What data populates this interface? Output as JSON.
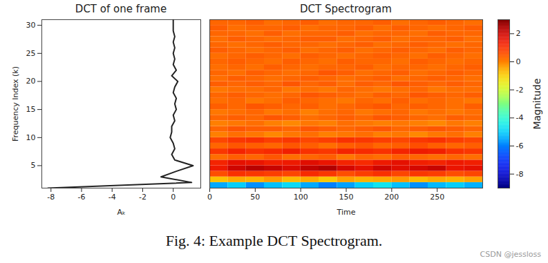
{
  "chart_data": [
    {
      "type": "line",
      "title": "DCT of one frame",
      "x_label": "Aₖ",
      "y_label": "Frequency Index (k)",
      "color": "#222222",
      "x": [
        -8.2,
        1.2,
        -0.8,
        0.2,
        1.3,
        0.1,
        -0.1,
        0.1,
        0.0,
        -0.2,
        -0.1,
        -0.1,
        0.1,
        0.0,
        0.2,
        0.1,
        0.2,
        0.0,
        0.1,
        0.3,
        -0.1,
        0.2,
        0.0,
        0.1,
        0.0,
        0.1,
        0.0,
        0.1,
        0.0,
        0.0,
        0.0
      ],
      "y": [
        1,
        2,
        3,
        4,
        5,
        6,
        7,
        8,
        9,
        10,
        11,
        12,
        13,
        14,
        15,
        16,
        17,
        18,
        19,
        20,
        21,
        22,
        23,
        24,
        25,
        26,
        27,
        28,
        29,
        30,
        31
      ],
      "xlim": [
        -8.6,
        1.8
      ],
      "ylim": [
        1,
        31
      ],
      "xticks": [
        -8,
        -6,
        -4,
        -2,
        0
      ],
      "yticks": [
        5,
        10,
        15,
        20,
        25,
        30
      ]
    },
    {
      "type": "heatmap",
      "title": "DCT Spectrogram",
      "x_label": "Time",
      "tick_labels": "x",
      "xlim": [
        0,
        300
      ],
      "ylim": [
        1,
        31
      ],
      "xticks": [
        0,
        50,
        100,
        150,
        200,
        250
      ],
      "x_edges": [
        0,
        20,
        40,
        60,
        80,
        100,
        120,
        140,
        160,
        180,
        200,
        220,
        240,
        260,
        280,
        300
      ],
      "y_edges": [
        1,
        2,
        3,
        4,
        5,
        6,
        7,
        8,
        9,
        10,
        11,
        12,
        13,
        14,
        15,
        16,
        17,
        18,
        19,
        20,
        21,
        22,
        23,
        24,
        25,
        26,
        27,
        28,
        29,
        30,
        31
      ],
      "cells": [
        [
          -5.5,
          -5.0,
          -5.8,
          -5.2,
          -4.8,
          -5.5,
          -6.0,
          -5.6,
          -5.0,
          -4.6,
          -5.2,
          -5.8,
          -5.3,
          -5.0,
          -5.4
        ],
        [
          -0.8,
          -0.5,
          -0.6,
          -0.3,
          -0.7,
          -0.5,
          -0.9,
          -0.4,
          -0.6,
          -0.5,
          -0.3,
          -0.7,
          -0.5,
          -0.6,
          -0.4
        ],
        [
          0.6,
          1.0,
          0.9,
          0.8,
          0.7,
          1.1,
          0.9,
          0.6,
          0.8,
          1.0,
          0.7,
          0.9,
          0.8,
          0.6,
          0.7
        ],
        [
          1.4,
          2.0,
          2.3,
          2.1,
          1.8,
          2.2,
          2.4,
          1.9,
          1.6,
          2.0,
          1.7,
          1.9,
          2.1,
          1.5,
          1.6
        ],
        [
          1.2,
          1.6,
          1.5,
          1.3,
          1.4,
          1.7,
          1.5,
          1.2,
          1.1,
          1.4,
          1.6,
          1.3,
          1.2,
          1.4,
          1.3
        ],
        [
          0.2,
          0.4,
          0.3,
          0.5,
          0.2,
          0.3,
          0.4,
          0.1,
          0.3,
          0.2,
          0.4,
          0.3,
          0.2,
          0.3,
          0.2
        ],
        [
          0.9,
          1.2,
          1.0,
          1.1,
          1.3,
          1.0,
          0.9,
          1.2,
          1.1,
          1.0,
          1.2,
          1.4,
          1.3,
          1.0,
          0.9
        ],
        [
          0.3,
          0.5,
          0.4,
          0.3,
          0.5,
          0.4,
          0.2,
          0.4,
          0.5,
          0.3,
          0.4,
          0.6,
          0.4,
          0.3,
          0.4
        ],
        [
          0.7,
          0.9,
          1.0,
          0.8,
          0.9,
          0.7,
          0.8,
          1.0,
          0.9,
          0.8,
          0.7,
          0.9,
          1.0,
          0.8,
          0.7
        ],
        [
          0.0,
          0.2,
          0.1,
          -0.1,
          0.1,
          0.2,
          0.0,
          0.1,
          0.2,
          0.0,
          0.1,
          -0.1,
          0.1,
          0.2,
          0.0
        ],
        [
          0.3,
          0.5,
          0.4,
          0.4,
          0.3,
          0.5,
          0.4,
          0.3,
          0.4,
          0.5,
          0.3,
          0.4,
          0.5,
          0.4,
          0.3
        ],
        [
          0.0,
          0.1,
          0.2,
          0.0,
          -0.1,
          0.1,
          0.0,
          0.2,
          0.1,
          0.0,
          0.1,
          0.0,
          -0.1,
          0.1,
          0.0
        ],
        [
          0.3,
          0.4,
          0.3,
          0.5,
          0.4,
          0.2,
          0.3,
          0.4,
          0.3,
          0.5,
          0.4,
          0.3,
          0.2,
          0.4,
          0.3
        ],
        [
          0.1,
          0.2,
          0.3,
          0.1,
          0.2,
          0.0,
          0.2,
          0.3,
          0.1,
          0.2,
          0.3,
          0.1,
          0.2,
          0.1,
          0.2
        ],
        [
          0.4,
          0.3,
          0.5,
          0.4,
          0.3,
          0.4,
          0.2,
          0.3,
          0.4,
          0.5,
          0.3,
          0.4,
          0.3,
          0.2,
          0.4
        ],
        [
          0.2,
          0.3,
          0.1,
          0.2,
          0.4,
          0.3,
          0.2,
          0.1,
          0.3,
          0.2,
          0.4,
          0.2,
          0.3,
          0.2,
          0.1
        ],
        [
          0.3,
          0.4,
          0.3,
          0.2,
          0.3,
          0.5,
          0.4,
          0.3,
          0.2,
          0.4,
          0.3,
          0.5,
          0.4,
          0.3,
          0.4
        ],
        [
          0.1,
          0.2,
          0.2,
          0.3,
          0.1,
          0.2,
          0.1,
          0.3,
          0.2,
          0.1,
          0.2,
          0.3,
          0.1,
          0.2,
          0.2
        ],
        [
          0.4,
          0.3,
          0.4,
          0.3,
          0.5,
          0.3,
          0.4,
          0.2,
          0.4,
          0.3,
          0.5,
          0.4,
          0.3,
          0.4,
          0.3
        ],
        [
          0.2,
          0.4,
          0.3,
          0.2,
          0.3,
          0.4,
          0.3,
          0.2,
          0.3,
          0.4,
          0.2,
          0.3,
          0.4,
          0.3,
          0.2
        ],
        [
          0.3,
          0.2,
          0.4,
          0.3,
          0.2,
          0.3,
          0.5,
          0.4,
          0.2,
          0.3,
          0.4,
          0.2,
          0.3,
          0.4,
          0.3
        ],
        [
          0.2,
          0.3,
          0.2,
          0.4,
          0.3,
          0.2,
          0.3,
          0.3,
          0.4,
          0.2,
          0.3,
          0.3,
          0.2,
          0.3,
          0.4
        ],
        [
          0.3,
          0.4,
          0.3,
          0.2,
          0.4,
          0.3,
          0.2,
          0.4,
          0.3,
          0.3,
          0.2,
          0.4,
          0.3,
          0.2,
          0.3
        ],
        [
          0.2,
          0.3,
          0.4,
          0.3,
          0.2,
          0.4,
          0.3,
          0.2,
          0.3,
          0.4,
          0.3,
          0.2,
          0.4,
          0.3,
          0.2
        ],
        [
          0.4,
          0.3,
          0.2,
          0.3,
          0.4,
          0.2,
          0.3,
          0.4,
          0.2,
          0.3,
          0.4,
          0.3,
          0.2,
          0.4,
          0.3
        ],
        [
          0.3,
          0.2,
          0.3,
          0.4,
          0.3,
          0.3,
          0.2,
          0.3,
          0.4,
          0.2,
          0.3,
          0.4,
          0.3,
          0.2,
          0.3
        ],
        [
          0.2,
          0.4,
          0.3,
          0.2,
          0.3,
          0.4,
          0.4,
          0.2,
          0.3,
          0.4,
          0.2,
          0.3,
          0.3,
          0.4,
          0.2
        ],
        [
          0.3,
          0.3,
          0.2,
          0.4,
          0.2,
          0.3,
          0.3,
          0.4,
          0.2,
          0.3,
          0.3,
          0.2,
          0.4,
          0.3,
          0.3
        ],
        [
          0.4,
          0.2,
          0.3,
          0.3,
          0.4,
          0.2,
          0.3,
          0.3,
          0.4,
          0.2,
          0.4,
          0.3,
          0.2,
          0.3,
          0.4
        ],
        [
          0.3,
          0.3,
          0.4,
          0.2,
          0.3,
          0.4,
          0.2,
          0.3,
          0.3,
          0.4,
          0.2,
          0.3,
          0.4,
          0.3,
          0.2
        ]
      ],
      "colorbar": {
        "label": "Magnitude",
        "lim": [
          -9,
          3
        ],
        "ticks": [
          -8,
          -6,
          -4,
          -2,
          0,
          2
        ]
      }
    }
  ],
  "caption": "Fig. 4: Example DCT Spectrogram.",
  "watermark": "CSDN @jessloss"
}
